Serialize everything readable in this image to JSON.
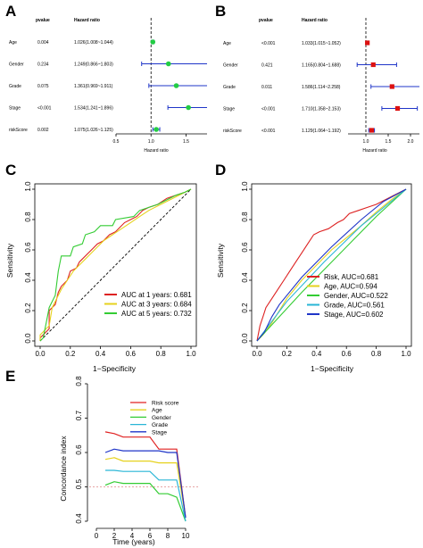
{
  "panels": {
    "A": {
      "letter": "A"
    },
    "B": {
      "letter": "B"
    },
    "C": {
      "letter": "C"
    },
    "D": {
      "letter": "D"
    },
    "E": {
      "letter": "E"
    }
  },
  "chart_data": [
    {
      "panel": "A",
      "type": "forest",
      "col_pvalue_header": "pvalue",
      "col_hr_header": "Hazard ratio",
      "xlabel": "Hazard ratio",
      "xlim": [
        0.5,
        1.8
      ],
      "xticks": [
        "0.5",
        "1.0",
        "1.5"
      ],
      "reference_line": 1.0,
      "point_color": "#22cc44",
      "rows": [
        {
          "label": "Age",
          "pvalue": "0.004",
          "hr_text": "1.026(1.008~1.044)",
          "hr": 1.026,
          "lo": 1.008,
          "hi": 1.044
        },
        {
          "label": "Gender",
          "pvalue": "0.234",
          "hr_text": "1.249(0.866~1.803)",
          "hr": 1.249,
          "lo": 0.866,
          "hi": 1.803
        },
        {
          "label": "Grade",
          "pvalue": "0.075",
          "hr_text": "1.361(0.969~1.911)",
          "hr": 1.361,
          "lo": 0.969,
          "hi": 1.911
        },
        {
          "label": "Stage",
          "pvalue": "<0.001",
          "hr_text": "1.534(1.241~1.896)",
          "hr": 1.534,
          "lo": 1.241,
          "hi": 1.896
        },
        {
          "label": "riskScore",
          "pvalue": "0.002",
          "hr_text": "1.075(1.026~1.125)",
          "hr": 1.075,
          "lo": 1.026,
          "hi": 1.125
        }
      ]
    },
    {
      "panel": "B",
      "type": "forest",
      "col_pvalue_header": "pvalue",
      "col_hr_header": "Hazard ratio",
      "xlabel": "Hazard ratio",
      "xlim": [
        0.6,
        2.2
      ],
      "xticks": [
        "1.0",
        "1.5",
        "2.0"
      ],
      "reference_line": 1.0,
      "point_color": "#dd1111",
      "rows": [
        {
          "label": "Age",
          "pvalue": "<0.001",
          "hr_text": "1.033(1.015~1.052)",
          "hr": 1.033,
          "lo": 1.015,
          "hi": 1.052
        },
        {
          "label": "Gender",
          "pvalue": "0.421",
          "hr_text": "1.165(0.804~1.688)",
          "hr": 1.165,
          "lo": 0.804,
          "hi": 1.688
        },
        {
          "label": "Grade",
          "pvalue": "0.011",
          "hr_text": "1.586(1.114~2.258)",
          "hr": 1.586,
          "lo": 1.114,
          "hi": 2.258
        },
        {
          "label": "Stage",
          "pvalue": "<0.001",
          "hr_text": "1.710(1.358~2.153)",
          "hr": 1.71,
          "lo": 1.358,
          "hi": 2.153
        },
        {
          "label": "riskScore",
          "pvalue": "<0.001",
          "hr_text": "1.129(1.064~1.192)",
          "hr": 1.129,
          "lo": 1.064,
          "hi": 1.192
        }
      ]
    },
    {
      "panel": "C",
      "type": "line",
      "xlabel": "1−Specificity",
      "ylabel": "Sensitivity",
      "xlim": [
        0,
        1
      ],
      "ylim": [
        0,
        1
      ],
      "ticks": [
        "0.0",
        "0.2",
        "0.4",
        "0.6",
        "0.8",
        "1.0"
      ],
      "diagonal": true,
      "series": [
        {
          "name": "AUC at 1 years: 0.681",
          "color": "#dd2222",
          "points": [
            [
              0,
              0
            ],
            [
              0,
              0.02
            ],
            [
              0.06,
              0.08
            ],
            [
              0.06,
              0.2
            ],
            [
              0.1,
              0.24
            ],
            [
              0.12,
              0.32
            ],
            [
              0.14,
              0.36
            ],
            [
              0.18,
              0.4
            ],
            [
              0.2,
              0.46
            ],
            [
              0.24,
              0.48
            ],
            [
              0.26,
              0.52
            ],
            [
              0.28,
              0.54
            ],
            [
              0.32,
              0.58
            ],
            [
              0.34,
              0.6
            ],
            [
              0.38,
              0.64
            ],
            [
              0.42,
              0.66
            ],
            [
              0.46,
              0.7
            ],
            [
              0.5,
              0.72
            ],
            [
              0.56,
              0.78
            ],
            [
              0.6,
              0.8
            ],
            [
              0.64,
              0.82
            ],
            [
              0.68,
              0.86
            ],
            [
              0.72,
              0.88
            ],
            [
              0.78,
              0.9
            ],
            [
              0.84,
              0.94
            ],
            [
              0.9,
              0.96
            ],
            [
              0.96,
              0.98
            ],
            [
              1,
              1
            ]
          ]
        },
        {
          "name": "AUC at 3 years: 0.684",
          "color": "#e6d21e",
          "points": [
            [
              0,
              0
            ],
            [
              0,
              0.04
            ],
            [
              0.06,
              0.1
            ],
            [
              0.08,
              0.22
            ],
            [
              0.12,
              0.3
            ],
            [
              0.14,
              0.34
            ],
            [
              0.18,
              0.4
            ],
            [
              0.22,
              0.46
            ],
            [
              0.26,
              0.5
            ],
            [
              0.3,
              0.54
            ],
            [
              0.34,
              0.58
            ],
            [
              0.38,
              0.62
            ],
            [
              0.42,
              0.66
            ],
            [
              0.48,
              0.7
            ],
            [
              0.54,
              0.74
            ],
            [
              0.6,
              0.78
            ],
            [
              0.66,
              0.82
            ],
            [
              0.72,
              0.86
            ],
            [
              0.8,
              0.9
            ],
            [
              0.88,
              0.94
            ],
            [
              0.94,
              0.97
            ],
            [
              1,
              1
            ]
          ]
        },
        {
          "name": "AUC at 5 years: 0.732",
          "color": "#33cc33",
          "points": [
            [
              0,
              0
            ],
            [
              0.02,
              0.02
            ],
            [
              0.04,
              0.12
            ],
            [
              0.06,
              0.22
            ],
            [
              0.1,
              0.3
            ],
            [
              0.12,
              0.46
            ],
            [
              0.14,
              0.56
            ],
            [
              0.2,
              0.56
            ],
            [
              0.22,
              0.62
            ],
            [
              0.28,
              0.64
            ],
            [
              0.3,
              0.7
            ],
            [
              0.36,
              0.72
            ],
            [
              0.4,
              0.76
            ],
            [
              0.48,
              0.76
            ],
            [
              0.5,
              0.8
            ],
            [
              0.62,
              0.82
            ],
            [
              0.66,
              0.86
            ],
            [
              0.72,
              0.88
            ],
            [
              0.78,
              0.9
            ],
            [
              0.82,
              0.92
            ],
            [
              0.9,
              0.96
            ],
            [
              0.96,
              0.98
            ],
            [
              1,
              1
            ]
          ]
        }
      ]
    },
    {
      "panel": "D",
      "type": "line",
      "xlabel": "1−Specificity",
      "ylabel": "Sensitivity",
      "xlim": [
        0,
        1
      ],
      "ylim": [
        0,
        1
      ],
      "ticks": [
        "0.0",
        "0.2",
        "0.4",
        "0.6",
        "0.8",
        "1.0"
      ],
      "series": [
        {
          "name": "Risk, AUC=0.681",
          "color": "#dd2222",
          "points": [
            [
              0,
              0
            ],
            [
              0.02,
              0.1
            ],
            [
              0.04,
              0.16
            ],
            [
              0.06,
              0.22
            ],
            [
              0.1,
              0.28
            ],
            [
              0.14,
              0.34
            ],
            [
              0.18,
              0.4
            ],
            [
              0.22,
              0.46
            ],
            [
              0.26,
              0.52
            ],
            [
              0.3,
              0.58
            ],
            [
              0.34,
              0.64
            ],
            [
              0.38,
              0.7
            ],
            [
              0.42,
              0.72
            ],
            [
              0.48,
              0.74
            ],
            [
              0.54,
              0.78
            ],
            [
              0.58,
              0.8
            ],
            [
              0.62,
              0.84
            ],
            [
              0.68,
              0.86
            ],
            [
              0.74,
              0.88
            ],
            [
              0.8,
              0.9
            ],
            [
              0.86,
              0.93
            ],
            [
              0.92,
              0.96
            ],
            [
              1,
              1
            ]
          ]
        },
        {
          "name": "Age, AUC=0.594",
          "color": "#e6d21e",
          "points": [
            [
              0,
              0
            ],
            [
              0.04,
              0.04
            ],
            [
              0.1,
              0.12
            ],
            [
              0.2,
              0.28
            ],
            [
              0.3,
              0.4
            ],
            [
              0.4,
              0.5
            ],
            [
              0.5,
              0.6
            ],
            [
              0.6,
              0.68
            ],
            [
              0.7,
              0.76
            ],
            [
              0.8,
              0.85
            ],
            [
              0.9,
              0.93
            ],
            [
              1,
              1
            ]
          ]
        },
        {
          "name": "Gender, AUC=0.522",
          "color": "#33cc33",
          "points": [
            [
              0,
              0
            ],
            [
              0.3,
              0.32
            ],
            [
              0.55,
              0.57
            ],
            [
              0.8,
              0.82
            ],
            [
              1,
              1
            ]
          ]
        },
        {
          "name": "Grade, AUC=0.561",
          "color": "#29b6d6",
          "points": [
            [
              0,
              0
            ],
            [
              0.2,
              0.26
            ],
            [
              0.45,
              0.52
            ],
            [
              0.7,
              0.76
            ],
            [
              1,
              1
            ]
          ]
        },
        {
          "name": "Stage, AUC=0.602",
          "color": "#1f35c8",
          "points": [
            [
              0,
              0
            ],
            [
              0.05,
              0.06
            ],
            [
              0.1,
              0.16
            ],
            [
              0.15,
              0.24
            ],
            [
              0.3,
              0.42
            ],
            [
              0.5,
              0.62
            ],
            [
              0.7,
              0.8
            ],
            [
              0.85,
              0.92
            ],
            [
              1,
              1
            ]
          ]
        }
      ]
    },
    {
      "panel": "E",
      "type": "line",
      "xlabel": "Time (years)",
      "ylabel": "Concordance index",
      "xlim": [
        0,
        10
      ],
      "ylim": [
        0.4,
        0.8
      ],
      "xticks": [
        "0",
        "2",
        "4",
        "6",
        "8",
        "10"
      ],
      "yticks": [
        "0.4",
        "0.5",
        "0.6",
        "0.7",
        "0.8"
      ],
      "reference_y": 0.5,
      "series": [
        {
          "name": "Risk score",
          "color": "#e02020",
          "x": [
            1,
            2,
            3,
            4,
            5,
            6,
            7,
            8,
            9,
            10
          ],
          "values": [
            0.66,
            0.655,
            0.645,
            0.645,
            0.645,
            0.645,
            0.61,
            0.61,
            0.61,
            0.41
          ]
        },
        {
          "name": "Age",
          "color": "#e6d21e",
          "x": [
            1,
            2,
            3,
            4,
            5,
            6,
            7,
            8,
            9,
            10
          ],
          "values": [
            0.58,
            0.585,
            0.575,
            0.575,
            0.575,
            0.575,
            0.57,
            0.57,
            0.57,
            0.41
          ]
        },
        {
          "name": "Gender",
          "color": "#33cc33",
          "x": [
            1,
            2,
            3,
            4,
            5,
            6,
            7,
            8,
            9,
            10
          ],
          "values": [
            0.505,
            0.515,
            0.51,
            0.51,
            0.51,
            0.51,
            0.48,
            0.48,
            0.47,
            0.4
          ]
        },
        {
          "name": "Grade",
          "color": "#29b6d6",
          "x": [
            1,
            2,
            3,
            4,
            5,
            6,
            7,
            8,
            9,
            10
          ],
          "values": [
            0.548,
            0.548,
            0.545,
            0.545,
            0.545,
            0.545,
            0.52,
            0.52,
            0.52,
            0.4
          ]
        },
        {
          "name": "Stage",
          "color": "#1f35c8",
          "x": [
            1,
            2,
            3,
            4,
            5,
            6,
            7,
            8,
            9,
            10
          ],
          "values": [
            0.6,
            0.61,
            0.605,
            0.605,
            0.605,
            0.605,
            0.605,
            0.6,
            0.6,
            0.41
          ]
        }
      ]
    }
  ]
}
